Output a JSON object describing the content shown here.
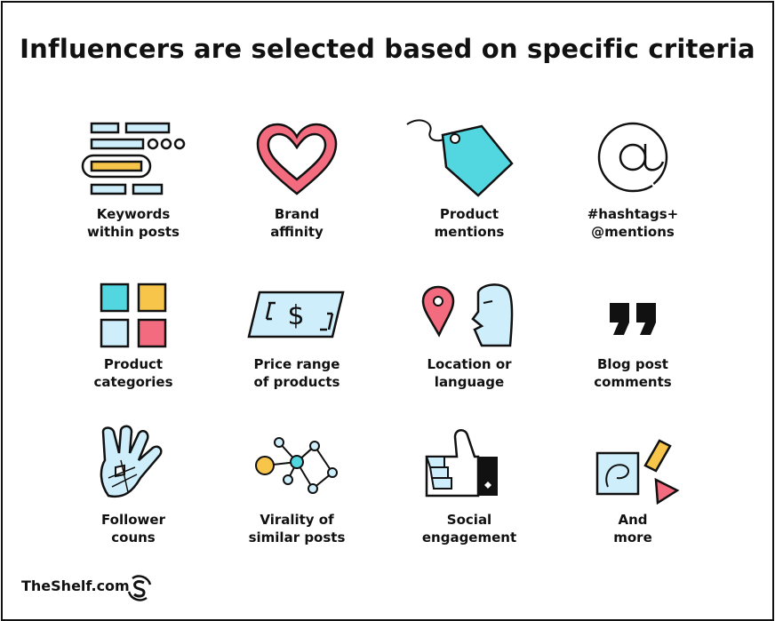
{
  "title": "Influencers are selected based on specific criteria",
  "criteria": [
    {
      "icon": "keywords-icon",
      "line1": "Keywords",
      "line2": "within posts"
    },
    {
      "icon": "heart-icon",
      "line1": "Brand",
      "line2": "affinity"
    },
    {
      "icon": "price-tag-icon",
      "line1": "Product",
      "line2": "mentions"
    },
    {
      "icon": "at-sign-icon",
      "line1": "#hashtags+",
      "line2": "@mentions"
    },
    {
      "icon": "category-grid-icon",
      "line1": "Product",
      "line2": "categories"
    },
    {
      "icon": "dollar-bill-icon",
      "line1": "Price range",
      "line2": "of products"
    },
    {
      "icon": "location-face-icon",
      "line1": "Location or",
      "line2": "language"
    },
    {
      "icon": "quote-marks-icon",
      "line1": "Blog post",
      "line2": "comments"
    },
    {
      "icon": "hand-icon",
      "line1": "Follower",
      "line2": "couns"
    },
    {
      "icon": "network-icon",
      "line1": "Virality of",
      "line2": "similar posts"
    },
    {
      "icon": "thumbs-up-icon",
      "line1": "Social",
      "line2": "engagement"
    },
    {
      "icon": "shapes-icon",
      "line1": "And",
      "line2": "more"
    }
  ],
  "footer": {
    "brand": "TheShelf.com",
    "logo_icon": "theshelf-logo-icon"
  },
  "colors": {
    "blue": "#cdeefa",
    "yellow": "#f7c54a",
    "pink": "#f26b7e",
    "teal": "#52d6e0",
    "ink": "#111111"
  }
}
